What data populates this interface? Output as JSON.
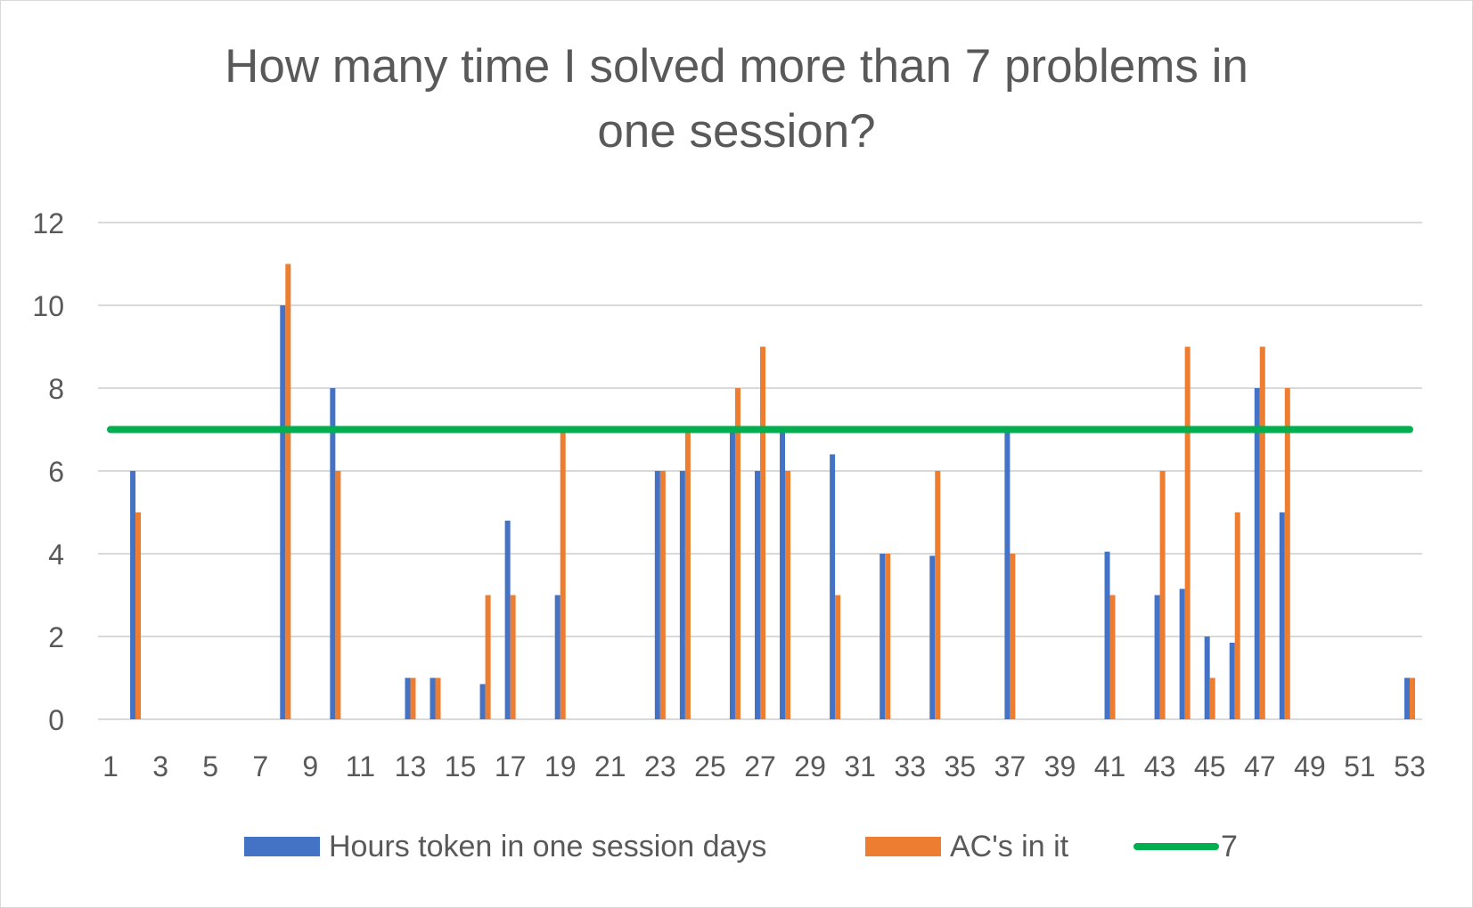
{
  "chart_data": {
    "type": "bar",
    "title": "How many time I solved more than 7 problems in one session?",
    "xlabel": "",
    "ylabel": "",
    "ylim": [
      0,
      12
    ],
    "yticks": [
      0,
      2,
      4,
      6,
      8,
      10,
      12
    ],
    "grid": true,
    "legend_position": "bottom",
    "categories": [
      1,
      2,
      3,
      4,
      5,
      6,
      7,
      8,
      9,
      10,
      11,
      12,
      13,
      14,
      15,
      16,
      17,
      18,
      19,
      20,
      21,
      22,
      23,
      24,
      25,
      26,
      27,
      28,
      29,
      30,
      31,
      32,
      33,
      34,
      35,
      36,
      37,
      38,
      39,
      40,
      41,
      42,
      43,
      44,
      45,
      46,
      47,
      48,
      49,
      50,
      51,
      52,
      53
    ],
    "xtick_labels": [
      "1",
      "3",
      "5",
      "7",
      "9",
      "11",
      "13",
      "15",
      "17",
      "19",
      "21",
      "23",
      "25",
      "27",
      "29",
      "31",
      "33",
      "35",
      "37",
      "39",
      "41",
      "43",
      "45",
      "47",
      "49",
      "51",
      "53"
    ],
    "series": [
      {
        "name": "Hours token in one session days",
        "type": "bar",
        "color": "#4472c4",
        "values": [
          0,
          6,
          0,
          0,
          0,
          0,
          0,
          10,
          0,
          8,
          0,
          0,
          1,
          1,
          0,
          0.85,
          4.8,
          0,
          3,
          0,
          0,
          0,
          6,
          6,
          0,
          7,
          6,
          7,
          0,
          6.4,
          0,
          4,
          0,
          3.95,
          0,
          0,
          7,
          0,
          0,
          0,
          4.05,
          0,
          3,
          3.15,
          2,
          1.85,
          8,
          5,
          0,
          0,
          0,
          0,
          1
        ]
      },
      {
        "name": "AC's in it",
        "type": "bar",
        "color": "#ed7d31",
        "values": [
          0,
          5,
          0,
          0,
          0,
          0,
          0,
          11,
          0,
          6,
          0,
          0,
          1,
          1,
          0,
          3,
          3,
          0,
          7,
          0,
          0,
          0,
          6,
          7,
          0,
          8,
          9,
          6,
          0,
          3,
          0,
          4,
          0,
          6,
          0,
          0,
          4,
          0,
          0,
          0,
          3,
          0,
          6,
          9,
          1,
          5,
          9,
          8,
          0,
          0,
          0,
          0,
          1
        ]
      },
      {
        "name": "7",
        "type": "line",
        "color": "#00b050",
        "value": 7
      }
    ]
  },
  "legend": {
    "items": [
      {
        "label": "Hours token in one session days",
        "color": "#4472c4",
        "kind": "bar"
      },
      {
        "label": "AC's in it",
        "color": "#ed7d31",
        "kind": "bar"
      },
      {
        "label": "7",
        "color": "#00b050",
        "kind": "line"
      }
    ]
  },
  "colors": {
    "grid": "#d9d9d9",
    "axis_text": "#595959",
    "title_text": "#595959"
  }
}
